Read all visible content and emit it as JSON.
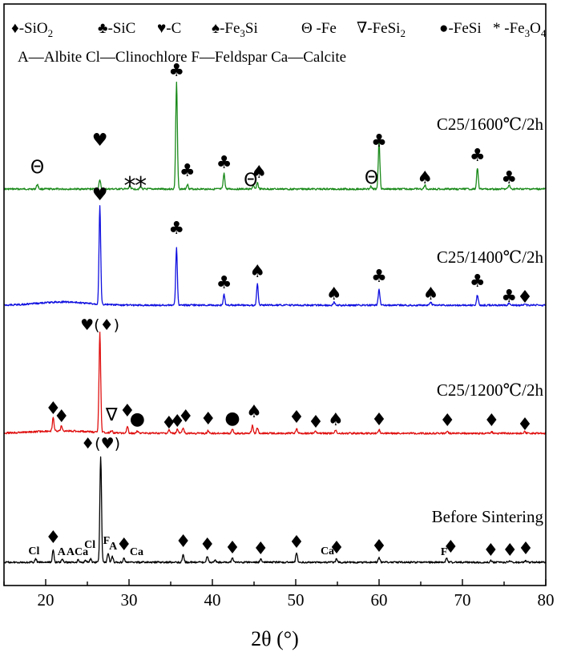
{
  "chart_data": {
    "type": "line",
    "xlabel": "2θ (°)",
    "ylabel": "",
    "xlim": [
      15,
      80
    ],
    "xticks": [
      20,
      30,
      40,
      50,
      60,
      70,
      80
    ],
    "grid": false,
    "legend": {
      "placement": "top-left",
      "phases": [
        {
          "symbol": "♦",
          "label": "-SiO",
          "sub": "2"
        },
        {
          "symbol": "♣",
          "label": "-SiC",
          "sub": ""
        },
        {
          "symbol": "♥",
          "label": "-C",
          "sub": ""
        },
        {
          "symbol": "♠",
          "label": "-Fe",
          "sub": "3",
          "tail": "Si"
        },
        {
          "symbol": "Θ",
          "label": " -Fe",
          "sub": ""
        },
        {
          "symbol": "∇",
          "label": "-FeSi",
          "sub": "2"
        },
        {
          "symbol": "●",
          "label": "-FeSi",
          "sub": ""
        },
        {
          "symbol": "*",
          "label": " -Fe",
          "sub": "3",
          "tail": "O",
          "sub2": "4"
        }
      ],
      "abbreviations": "A—Albite  Cl—Clinochlore  F—Feldspar  Ca—Calcite"
    },
    "series": [
      {
        "name": "C25/1600℃/2h",
        "color": "#1a8a1a",
        "baseline": 236,
        "peaks": [
          {
            "x": 19.0,
            "h": 6
          },
          {
            "x": 26.5,
            "h": 12
          },
          {
            "x": 30.1,
            "h": 4
          },
          {
            "x": 31.4,
            "h": 3
          },
          {
            "x": 35.7,
            "h": 133
          },
          {
            "x": 37.0,
            "h": 6
          },
          {
            "x": 41.4,
            "h": 19
          },
          {
            "x": 44.9,
            "h": 4
          },
          {
            "x": 45.4,
            "h": 8
          },
          {
            "x": 59.0,
            "h": 3
          },
          {
            "x": 60.0,
            "h": 59
          },
          {
            "x": 65.5,
            "h": 5
          },
          {
            "x": 71.8,
            "h": 26
          },
          {
            "x": 75.6,
            "h": 5
          }
        ],
        "annotations": [
          {
            "symbol": "Θ",
            "x": 19.0,
            "y": 216
          },
          {
            "symbol": "♥",
            "x": 26.5,
            "y": 182
          },
          {
            "symbol": "*",
            "x": 30.1,
            "y": 230
          },
          {
            "symbol": "*",
            "x": 31.4,
            "y": 230
          },
          {
            "symbol": "♣",
            "x": 35.7,
            "y": 95
          },
          {
            "symbol": "♣",
            "x": 37.0,
            "y": 220
          },
          {
            "symbol": "♣",
            "x": 41.4,
            "y": 210
          },
          {
            "symbol": "Θ",
            "x": 44.6,
            "y": 232
          },
          {
            "symbol": "♠",
            "x": 45.6,
            "y": 222
          },
          {
            "symbol": "Θ",
            "x": 59.1,
            "y": 229
          },
          {
            "symbol": "♣",
            "x": 60.0,
            "y": 183
          },
          {
            "symbol": "♠",
            "x": 65.5,
            "y": 229
          },
          {
            "symbol": "♣",
            "x": 71.8,
            "y": 201
          },
          {
            "symbol": "♣",
            "x": 75.6,
            "y": 229
          }
        ]
      },
      {
        "name": "C25/1400℃/2h",
        "color": "#1010e0",
        "baseline": 381,
        "peaks": [
          {
            "x": 26.5,
            "h": 124
          },
          {
            "x": 35.7,
            "h": 71
          },
          {
            "x": 41.4,
            "h": 13
          },
          {
            "x": 45.4,
            "h": 26
          },
          {
            "x": 54.6,
            "h": 4
          },
          {
            "x": 60.0,
            "h": 19
          },
          {
            "x": 66.2,
            "h": 4
          },
          {
            "x": 71.8,
            "h": 13
          },
          {
            "x": 75.6,
            "h": 3
          },
          {
            "x": 77.5,
            "h": 2
          }
        ],
        "annotations": [
          {
            "symbol": "♥",
            "x": 26.5,
            "y": 250
          },
          {
            "symbol": "♣",
            "x": 35.7,
            "y": 292
          },
          {
            "symbol": "♣",
            "x": 41.4,
            "y": 360
          },
          {
            "symbol": "♠",
            "x": 45.4,
            "y": 346
          },
          {
            "symbol": "♠",
            "x": 54.6,
            "y": 374
          },
          {
            "symbol": "♣",
            "x": 60.0,
            "y": 352
          },
          {
            "symbol": "♠",
            "x": 66.2,
            "y": 374
          },
          {
            "symbol": "♣",
            "x": 71.8,
            "y": 358
          },
          {
            "symbol": "♣",
            "x": 75.6,
            "y": 377
          },
          {
            "symbol": "♦",
            "x": 77.5,
            "y": 378
          }
        ]
      },
      {
        "name": "C25/1200℃/2h",
        "color": "#e01010",
        "baseline": 541,
        "peaks": [
          {
            "x": 20.9,
            "h": 16
          },
          {
            "x": 21.9,
            "h": 6
          },
          {
            "x": 26.5,
            "h": 126
          },
          {
            "x": 27.9,
            "h": 3
          },
          {
            "x": 29.8,
            "h": 8
          },
          {
            "x": 31.0,
            "h": 3
          },
          {
            "x": 34.8,
            "h": 4
          },
          {
            "x": 35.8,
            "h": 5
          },
          {
            "x": 36.5,
            "h": 7
          },
          {
            "x": 39.5,
            "h": 4
          },
          {
            "x": 42.4,
            "h": 5
          },
          {
            "x": 44.8,
            "h": 10
          },
          {
            "x": 45.4,
            "h": 7
          },
          {
            "x": 50.1,
            "h": 6
          },
          {
            "x": 52.4,
            "h": 3
          },
          {
            "x": 54.8,
            "h": 4
          },
          {
            "x": 60.0,
            "h": 5
          },
          {
            "x": 68.2,
            "h": 3
          },
          {
            "x": 73.5,
            "h": 2
          },
          {
            "x": 77.5,
            "h": 2
          }
        ],
        "annotations": [
          {
            "symbol": "♥(♦)",
            "x": 26.5,
            "y": 412
          },
          {
            "symbol": "♦",
            "x": 20.9,
            "y": 517
          },
          {
            "symbol": "♦",
            "x": 21.9,
            "y": 527
          },
          {
            "symbol": "∇",
            "x": 27.9,
            "y": 525
          },
          {
            "symbol": "♦",
            "x": 29.8,
            "y": 520
          },
          {
            "symbol": "●",
            "x": 31.0,
            "y": 530
          },
          {
            "symbol": "♦",
            "x": 34.8,
            "y": 535
          },
          {
            "symbol": "♦",
            "x": 35.8,
            "y": 533
          },
          {
            "symbol": "♦",
            "x": 36.8,
            "y": 527
          },
          {
            "symbol": "♦",
            "x": 39.5,
            "y": 530
          },
          {
            "symbol": "●",
            "x": 42.4,
            "y": 529
          },
          {
            "symbol": "♠",
            "x": 45.0,
            "y": 521
          },
          {
            "symbol": "♦",
            "x": 50.1,
            "y": 528
          },
          {
            "symbol": "♦",
            "x": 52.4,
            "y": 534
          },
          {
            "symbol": "♠",
            "x": 54.8,
            "y": 531
          },
          {
            "symbol": "♦",
            "x": 60.0,
            "y": 531
          },
          {
            "symbol": "♦",
            "x": 68.2,
            "y": 532
          },
          {
            "symbol": "♦",
            "x": 73.5,
            "y": 532
          },
          {
            "symbol": "♦",
            "x": 77.5,
            "y": 537
          }
        ]
      },
      {
        "name": "Before Sintering",
        "color": "#000000",
        "baseline": 702,
        "peaks": [
          {
            "x": 18.8,
            "h": 4
          },
          {
            "x": 20.9,
            "h": 15
          },
          {
            "x": 22.0,
            "h": 4
          },
          {
            "x": 23.9,
            "h": 3
          },
          {
            "x": 24.8,
            "h": 3
          },
          {
            "x": 25.4,
            "h": 4
          },
          {
            "x": 26.6,
            "h": 132
          },
          {
            "x": 27.5,
            "h": 12
          },
          {
            "x": 28.0,
            "h": 7
          },
          {
            "x": 29.4,
            "h": 5
          },
          {
            "x": 36.5,
            "h": 10
          },
          {
            "x": 39.4,
            "h": 8
          },
          {
            "x": 40.3,
            "h": 3
          },
          {
            "x": 42.4,
            "h": 6
          },
          {
            "x": 45.8,
            "h": 4
          },
          {
            "x": 50.1,
            "h": 12
          },
          {
            "x": 54.9,
            "h": 4
          },
          {
            "x": 60.0,
            "h": 6
          },
          {
            "x": 68.1,
            "h": 5
          },
          {
            "x": 73.4,
            "h": 2
          },
          {
            "x": 75.7,
            "h": 2
          },
          {
            "x": 77.6,
            "h": 2
          }
        ],
        "annotations": [
          {
            "symbol": "♦(♥)",
            "x": 26.6,
            "y": 560
          },
          {
            "symbol": "♦",
            "x": 20.9,
            "y": 678
          },
          {
            "symbol": "♦",
            "x": 29.4,
            "y": 687
          },
          {
            "symbol": "♦",
            "x": 36.5,
            "y": 683
          },
          {
            "symbol": "♦",
            "x": 39.4,
            "y": 687
          },
          {
            "symbol": "♦",
            "x": 42.4,
            "y": 691
          },
          {
            "symbol": "♦",
            "x": 45.8,
            "y": 692
          },
          {
            "symbol": "♦",
            "x": 50.1,
            "y": 684
          },
          {
            "symbol": "♦",
            "x": 54.9,
            "y": 691
          },
          {
            "symbol": "♦",
            "x": 60.0,
            "y": 689
          },
          {
            "symbol": "♦",
            "x": 68.6,
            "y": 690
          },
          {
            "symbol": "♦",
            "x": 73.4,
            "y": 694
          },
          {
            "symbol": "♦",
            "x": 75.7,
            "y": 694
          },
          {
            "symbol": "♦",
            "x": 77.6,
            "y": 692
          }
        ],
        "minerals": [
          {
            "text": "Cl",
            "x": 18.6,
            "y": 692
          },
          {
            "text": "A",
            "x": 21.9,
            "y": 693
          },
          {
            "text": "ACa",
            "x": 23.8,
            "y": 693
          },
          {
            "text": "Cl",
            "x": 25.3,
            "y": 684
          },
          {
            "text": "F",
            "x": 27.3,
            "y": 679
          },
          {
            "text": "A",
            "x": 28.1,
            "y": 686
          },
          {
            "text": "Ca",
            "x": 30.9,
            "y": 693
          },
          {
            "text": "Ca",
            "x": 53.8,
            "y": 692
          },
          {
            "text": "F",
            "x": 67.8,
            "y": 693
          }
        ]
      }
    ]
  }
}
